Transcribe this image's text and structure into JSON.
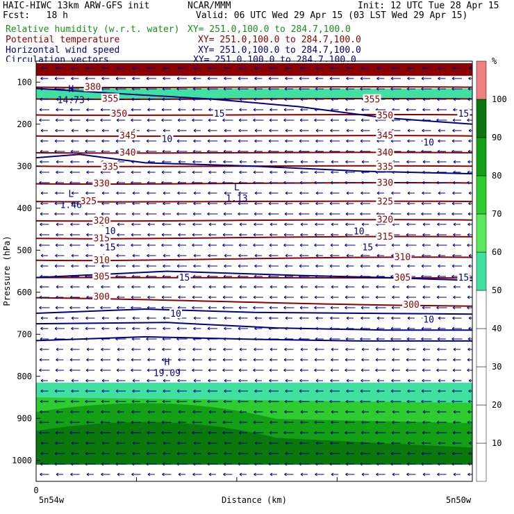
{
  "header": {
    "line1_left": "HAIC-HIWC 13km ARW-GFS init",
    "line1_mid": "NCAR/MMM",
    "line1_right": "Init: 12 UTC Tue 28 Apr 15",
    "fcst": "Fcst:   18 h",
    "valid": "Valid: 06 UTC Wed 29 Apr 15 (03 LST Wed 29 Apr 15)",
    "fields": [
      {
        "name": "Relative humidity (w.r.t. water)",
        "xy": "XY= 251.0,100.0 to 284.7,100.0",
        "color": "#1a8c1a"
      },
      {
        "name": "Potential temperature",
        "xy": "XY= 251.0,100.0 to 284.7,100.0",
        "color": "#8b0000"
      },
      {
        "name": "Horizontal wind speed",
        "xy": "XY= 251.0,100.0 to 284.7,100.0",
        "color": "#000080"
      },
      {
        "name": "Circulation vectors",
        "xy": "XY= 251.0,100.0 to 284.7,100.0",
        "color": "#000080"
      }
    ]
  },
  "colors": {
    "theta": "#8b0000",
    "wind": "#000080",
    "rh_bins": [
      "#ffffff",
      "#ffffff",
      "#ffffff",
      "#ffffff",
      "#ffffff",
      "#40e0a0",
      "#5ae85a",
      "#2ecc2e",
      "#14a014",
      "#0a780a",
      "#f08080"
    ]
  },
  "chart_data": {
    "type": "contour-cross-section",
    "ylabel": "Pressure (hPa)",
    "xlabel": "Distance (km)",
    "x_start_label": "5n54w",
    "x_end_label": "5n50w",
    "x_zero_label": "0",
    "yticks": [
      100,
      200,
      300,
      400,
      500,
      600,
      700,
      800,
      900,
      1000
    ],
    "ylim": [
      50,
      1050
    ],
    "colorbar": {
      "unit": "%",
      "ticks": [
        10,
        20,
        30,
        40,
        50,
        60,
        70,
        80,
        90,
        100
      ]
    },
    "theta_contours": [
      {
        "value": 380,
        "p_left": 112,
        "p_right": 112
      },
      {
        "value": 355,
        "p_left": 140,
        "p_right": 140
      },
      {
        "value": 350,
        "p_left": 178,
        "p_right": 178
      },
      {
        "value": 345,
        "p_left": 228,
        "p_right": 228
      },
      {
        "value": 340,
        "p_left": 268,
        "p_right": 268
      },
      {
        "value": 335,
        "p_left": 300,
        "p_right": 300
      },
      {
        "value": 330,
        "p_left": 342,
        "p_right": 340
      },
      {
        "value": 325,
        "p_left": 384,
        "p_right": 384
      },
      {
        "value": 320,
        "p_left": 430,
        "p_right": 428
      },
      {
        "value": 315,
        "p_left": 472,
        "p_right": 468
      },
      {
        "value": 310,
        "p_left": 524,
        "p_right": 517
      },
      {
        "value": 305,
        "p_left": 565,
        "p_right": 566
      },
      {
        "value": 300,
        "p_left": 613,
        "p_right": 633
      }
    ],
    "theta_labels": [
      {
        "text": "380",
        "p": 112,
        "at": 0.13
      },
      {
        "text": "355",
        "p": 140,
        "at": 0.17
      },
      {
        "text": "355",
        "p": 142,
        "at": 0.77
      },
      {
        "text": "350",
        "p": 176,
        "at": 0.19
      },
      {
        "text": "350",
        "p": 180,
        "at": 0.8
      },
      {
        "text": "345",
        "p": 228,
        "at": 0.21
      },
      {
        "text": "345",
        "p": 228,
        "at": 0.8
      },
      {
        "text": "340",
        "p": 268,
        "at": 0.21
      },
      {
        "text": "340",
        "p": 268,
        "at": 0.8
      },
      {
        "text": "335",
        "p": 302,
        "at": 0.17
      },
      {
        "text": "335",
        "p": 302,
        "at": 0.8
      },
      {
        "text": "330",
        "p": 342,
        "at": 0.15
      },
      {
        "text": "330",
        "p": 340,
        "at": 0.8
      },
      {
        "text": "325",
        "p": 384,
        "at": 0.12
      },
      {
        "text": "325",
        "p": 385,
        "at": 0.8
      },
      {
        "text": "320",
        "p": 430,
        "at": 0.15
      },
      {
        "text": "320",
        "p": 428,
        "at": 0.8
      },
      {
        "text": "315",
        "p": 472,
        "at": 0.15
      },
      {
        "text": "315",
        "p": 468,
        "at": 0.8
      },
      {
        "text": "310",
        "p": 524,
        "at": 0.15
      },
      {
        "text": "310",
        "p": 517,
        "at": 0.84
      },
      {
        "text": "305",
        "p": 563,
        "at": 0.15
      },
      {
        "text": "305",
        "p": 566,
        "at": 0.84
      },
      {
        "text": "300",
        "p": 611,
        "at": 0.15
      },
      {
        "text": "300",
        "p": 630,
        "at": 0.86
      }
    ],
    "wind_contours": [
      {
        "value": 10,
        "pts": [
          [
            0,
            115
          ],
          [
            0.2,
            128
          ],
          [
            0.4,
            140
          ],
          [
            0.6,
            158
          ],
          [
            0.8,
            185
          ],
          [
            1,
            200
          ]
        ]
      },
      {
        "value": 10,
        "pts": [
          [
            0,
            280
          ],
          [
            0.1,
            272
          ],
          [
            0.25,
            292
          ],
          [
            0.5,
            300
          ],
          [
            0.75,
            312
          ],
          [
            1,
            318
          ]
        ]
      },
      {
        "value": 10,
        "pts": [
          [
            0,
            650
          ],
          [
            0.25,
            640
          ],
          [
            0.5,
            648
          ],
          [
            0.75,
            650
          ],
          [
            1,
            652
          ]
        ]
      },
      {
        "value": 15,
        "pts": [
          [
            0,
            715
          ],
          [
            0.25,
            706
          ],
          [
            0.5,
            712
          ],
          [
            0.75,
            716
          ],
          [
            1,
            716
          ]
        ]
      },
      {
        "value": 15,
        "pts": [
          [
            0,
            565
          ],
          [
            0.3,
            550
          ],
          [
            0.6,
            560
          ],
          [
            0.8,
            565
          ],
          [
            1,
            572
          ]
        ]
      },
      {
        "value": 10,
        "pts": [
          [
            0,
            675
          ],
          [
            0.3,
            672
          ],
          [
            0.55,
            685
          ],
          [
            0.8,
            690
          ],
          [
            1,
            690
          ]
        ]
      }
    ],
    "wind_labels": [
      {
        "text": "15",
        "p": 176,
        "at": 0.42
      },
      {
        "text": "15",
        "p": 176,
        "at": 0.98
      },
      {
        "text": "10",
        "p": 236,
        "at": 0.3
      },
      {
        "text": "10",
        "p": 244,
        "at": 0.9
      },
      {
        "text": "10",
        "p": 455,
        "at": 0.17
      },
      {
        "text": "10",
        "p": 456,
        "at": 0.74
      },
      {
        "text": "15",
        "p": 494,
        "at": 0.17
      },
      {
        "text": "15",
        "p": 494,
        "at": 0.76
      },
      {
        "text": "15",
        "p": 566,
        "at": 0.34
      },
      {
        "text": "15",
        "p": 566,
        "at": 0.98
      },
      {
        "text": "10",
        "p": 652,
        "at": 0.32
      },
      {
        "text": "10",
        "p": 666,
        "at": 0.9
      }
    ],
    "extrema": [
      {
        "kind": "H",
        "value": "14.73",
        "p": 130,
        "at": 0.08
      },
      {
        "kind": "L",
        "value": "1.46",
        "p": 380,
        "at": 0.08
      },
      {
        "kind": "L",
        "value": "1.13",
        "p": 364,
        "at": 0.46
      },
      {
        "kind": "H",
        "value": "19.09",
        "p": 780,
        "at": 0.3
      }
    ],
    "rh_field": {
      "desc_levels": "relative humidity shading",
      "moist_top_p": 815,
      "layers": [
        {
          "rh": 55,
          "p_top": 815,
          "p_bot": 1010
        },
        {
          "rh": 70,
          "p_top": 850,
          "p_bot": 1010
        },
        {
          "rh": 80,
          "p_top": 885,
          "p_bot": 1010
        },
        {
          "rh": 90,
          "p_top": 930,
          "p_bot": 1010
        }
      ],
      "upper_moist": {
        "rh": 95,
        "p_top": 55,
        "p_bot": 85
      }
    }
  }
}
